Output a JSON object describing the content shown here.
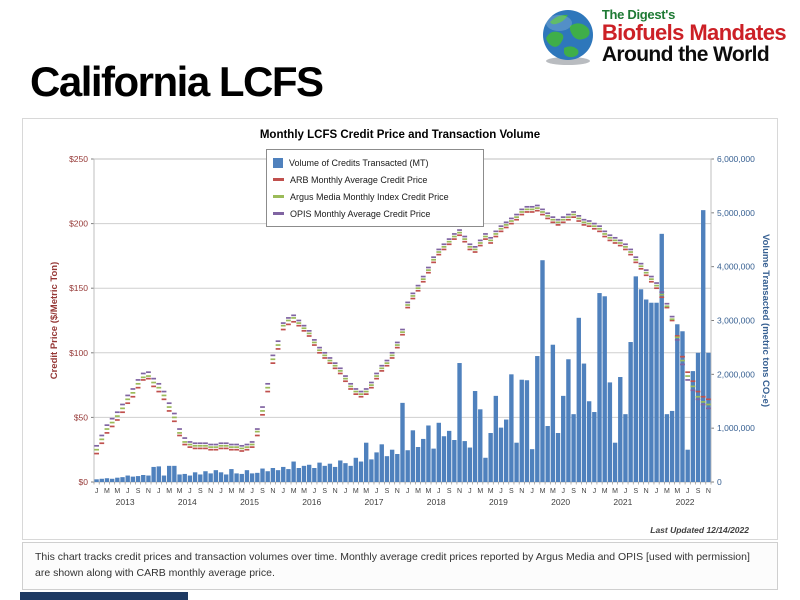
{
  "logo": {
    "line1": "The Digest's",
    "line2": "Biofuels Mandates",
    "line3": "Around the World",
    "colors": {
      "line1": "#1e7a34",
      "line2": "#cc2026",
      "line3": "#0d0d0d"
    }
  },
  "page_title": "California LCFS",
  "caption": "This chart tracks credit prices and transaction volumes over time. Monthly average credit prices reported by Argus Media and OPIS [used with permission] are shown along with CARB monthly average price.",
  "last_updated": "Last Updated 12/14/2022",
  "colors": {
    "footer_bar": "#1e3a63",
    "left_axis": "#953735",
    "right_axis": "#376092"
  },
  "chart_data": {
    "type": "combo",
    "title": "Monthly LCFS Credit Price and Transaction Volume",
    "x_start": "Jan 2013",
    "x_end": "Nov 2022",
    "month_tick_letters": [
      "J",
      "M",
      "M",
      "J",
      "S",
      "N"
    ],
    "years": [
      "2013",
      "2014",
      "2015",
      "2016",
      "2017",
      "2018",
      "2019",
      "2020",
      "2021",
      "2022"
    ],
    "left_axis": {
      "label": "Credit Price ($/Metric Ton)",
      "min": 0,
      "max": 250,
      "ticks": [
        "$0",
        "$50",
        "$100",
        "$150",
        "$200",
        "$250"
      ]
    },
    "right_axis": {
      "label": "Volume Transacted (metric tons CO₂e)",
      "min": 0,
      "max": 6000000,
      "ticks": [
        "0",
        "1,000,000",
        "2,000,000",
        "3,000,000",
        "4,000,000",
        "5,000,000",
        "6,000,000"
      ]
    },
    "grid": true,
    "legend_position": "top-center",
    "series": [
      {
        "name": "Volume of Credits Transacted (MT)",
        "type": "bar",
        "axis": "right",
        "color": "#4f81bd",
        "values": [
          50000,
          60000,
          70000,
          60000,
          80000,
          90000,
          120000,
          100000,
          110000,
          130000,
          120000,
          280000,
          290000,
          120000,
          300000,
          300000,
          140000,
          150000,
          120000,
          180000,
          140000,
          200000,
          160000,
          220000,
          180000,
          140000,
          240000,
          160000,
          150000,
          220000,
          160000,
          170000,
          250000,
          200000,
          260000,
          220000,
          280000,
          240000,
          380000,
          260000,
          300000,
          320000,
          260000,
          360000,
          300000,
          340000,
          280000,
          400000,
          350000,
          300000,
          450000,
          380000,
          730000,
          420000,
          550000,
          700000,
          480000,
          600000,
          520000,
          1470000,
          590000,
          960000,
          650000,
          800000,
          1050000,
          620000,
          1100000,
          850000,
          950000,
          780000,
          2210000,
          760000,
          640000,
          1690000,
          1350000,
          450000,
          910000,
          1600000,
          1010000,
          1160000,
          2000000,
          730000,
          1900000,
          1890000,
          610000,
          2340000,
          4120000,
          1040000,
          2550000,
          910000,
          1600000,
          2280000,
          1260000,
          3050000,
          2200000,
          1500000,
          1300000,
          3510000,
          3450000,
          1850000,
          730000,
          1950000,
          1260000,
          2600000,
          3820000,
          3580000,
          3390000,
          3330000,
          3330000,
          4610000,
          1260000,
          1320000,
          2930000,
          2800000,
          600000,
          2060000,
          2400000,
          5050000,
          2400000
        ]
      },
      {
        "name": "ARB Monthly Average Credit Price",
        "type": "dash",
        "axis": "left",
        "color": "#c0504d",
        "values": [
          22,
          30,
          38,
          43,
          48,
          54,
          61,
          66,
          73,
          79,
          80,
          74,
          70,
          64,
          55,
          47,
          36,
          29,
          27,
          26,
          26,
          26,
          25,
          25,
          26,
          26,
          25,
          25,
          24,
          25,
          27,
          36,
          52,
          70,
          92,
          103,
          118,
          122,
          124,
          121,
          117,
          113,
          106,
          100,
          96,
          92,
          88,
          84,
          78,
          72,
          68,
          66,
          68,
          73,
          80,
          86,
          90,
          96,
          104,
          114,
          135,
          142,
          148,
          155,
          162,
          170,
          176,
          180,
          184,
          188,
          191,
          186,
          180,
          178,
          183,
          188,
          185,
          190,
          194,
          197,
          200,
          203,
          207,
          209,
          209,
          210,
          207,
          204,
          201,
          199,
          201,
          203,
          205,
          202,
          199,
          198,
          196,
          194,
          190,
          187,
          185,
          183,
          180,
          176,
          170,
          165,
          160,
          155,
          150,
          143,
          135,
          125,
          113,
          97,
          85,
          78,
          70,
          66,
          64
        ]
      },
      {
        "name": "Argus Media Monthly Index Credit Price",
        "type": "dash",
        "axis": "left",
        "color": "#9bbb59",
        "values": [
          25,
          33,
          41,
          46,
          51,
          57,
          64,
          69,
          76,
          81,
          82,
          77,
          73,
          67,
          58,
          50,
          38,
          31,
          29,
          28,
          28,
          28,
          27,
          27,
          28,
          28,
          27,
          27,
          26,
          27,
          29,
          39,
          55,
          73,
          95,
          106,
          121,
          125,
          127,
          123,
          119,
          115,
          108,
          102,
          98,
          94,
          90,
          86,
          80,
          74,
          70,
          68,
          70,
          75,
          82,
          88,
          92,
          98,
          106,
          116,
          137,
          144,
          150,
          157,
          164,
          172,
          178,
          182,
          186,
          190,
          193,
          188,
          182,
          180,
          185,
          190,
          187,
          192,
          196,
          199,
          202,
          205,
          209,
          211,
          211,
          212,
          209,
          206,
          203,
          201,
          203,
          205,
          207,
          204,
          201,
          200,
          198,
          196,
          192,
          189,
          187,
          185,
          182,
          178,
          172,
          167,
          162,
          157,
          152,
          145,
          136,
          126,
          112,
          94,
          82,
          74,
          66,
          62,
          60
        ]
      },
      {
        "name": "OPIS Monthly Average Credit Price",
        "type": "dash",
        "axis": "left",
        "color": "#8064a2",
        "values": [
          28,
          36,
          44,
          49,
          54,
          60,
          67,
          72,
          79,
          84,
          85,
          80,
          76,
          70,
          61,
          53,
          41,
          34,
          31,
          30,
          30,
          30,
          29,
          29,
          30,
          30,
          29,
          29,
          28,
          29,
          31,
          41,
          58,
          76,
          98,
          109,
          123,
          127,
          129,
          125,
          121,
          117,
          110,
          104,
          100,
          96,
          92,
          88,
          82,
          76,
          72,
          70,
          72,
          77,
          84,
          90,
          94,
          100,
          108,
          118,
          139,
          146,
          152,
          159,
          166,
          174,
          180,
          184,
          188,
          192,
          195,
          190,
          184,
          182,
          187,
          192,
          189,
          194,
          198,
          201,
          204,
          207,
          211,
          213,
          213,
          214,
          211,
          208,
          205,
          203,
          205,
          207,
          209,
          206,
          203,
          202,
          200,
          198,
          194,
          191,
          189,
          187,
          184,
          180,
          174,
          169,
          164,
          159,
          154,
          147,
          138,
          128,
          110,
          91,
          79,
          71,
          64,
          60,
          57
        ]
      }
    ]
  }
}
